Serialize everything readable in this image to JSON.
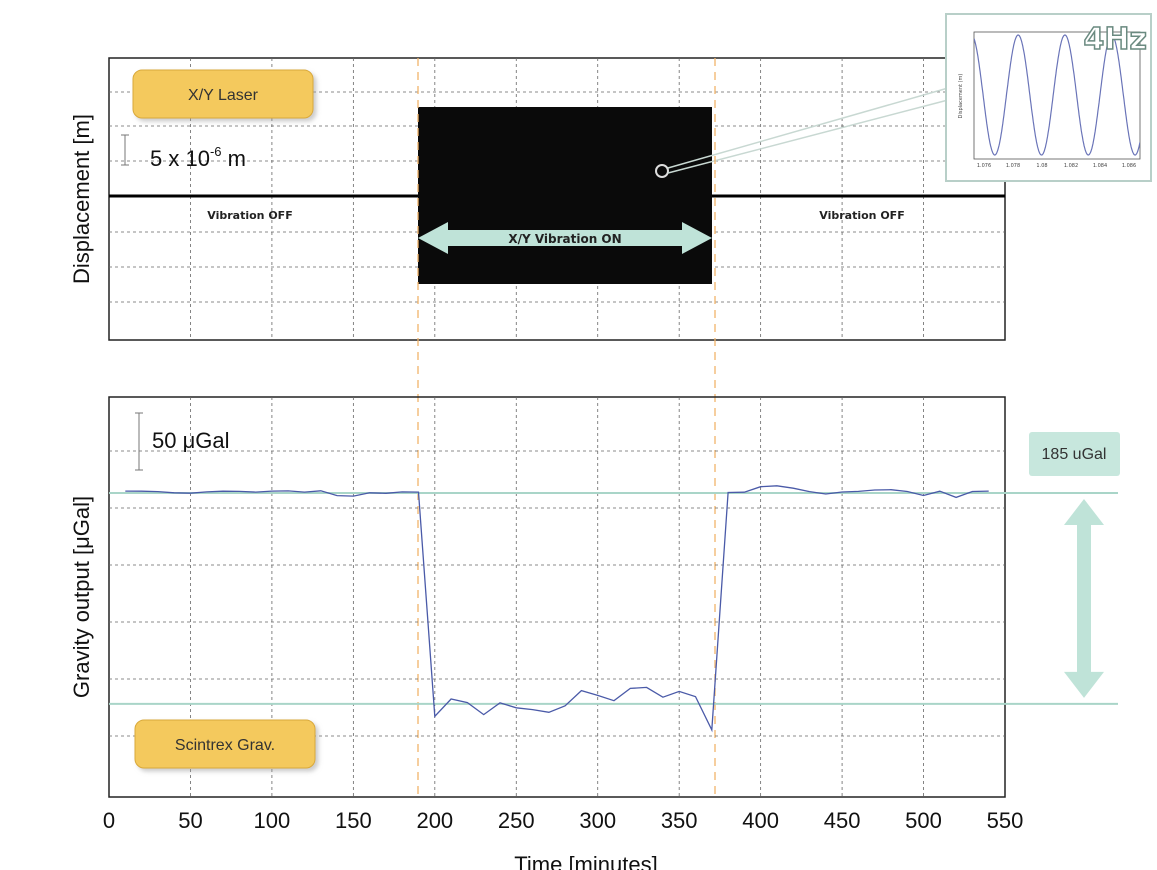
{
  "chart_data": [
    {
      "type": "line",
      "panel": "top",
      "ylabel": "Displacement [m]",
      "grid": true,
      "tag_label": "X/Y Laser",
      "scale_bar_text": "5 x 10",
      "scale_bar_exp": "-6",
      "scale_bar_unit": " m",
      "annotations": {
        "off_left": "Vibration OFF",
        "off_right": "Vibration OFF",
        "on": "X/Y  Vibration ON"
      },
      "vibration_on_range": [
        190,
        370
      ],
      "inset": {
        "label": "4Hz",
        "ylabel": "Displacement (m)",
        "tick_labels": [
          "1.076",
          "1.078",
          "1.08",
          "1.082",
          "1.084",
          "1.086"
        ]
      }
    },
    {
      "type": "line",
      "panel": "bottom",
      "ylabel": "Gravity output [μGal]",
      "xlabel": "Time [minutes]",
      "xlim": [
        0,
        550
      ],
      "x_ticks": [
        0,
        50,
        100,
        150,
        200,
        250,
        300,
        350,
        400,
        450,
        500,
        550
      ],
      "grid": true,
      "tag_label": "Scintrex Grav.",
      "scale_bar_text": "50 μGal",
      "difference_label": "185 uGal",
      "series": [
        {
          "x": [
            10,
            20,
            30,
            40,
            50,
            60,
            70,
            80,
            90,
            100,
            110,
            120,
            130,
            140,
            150,
            160,
            170,
            180,
            190,
            200,
            210,
            220,
            230,
            240,
            250,
            260,
            270,
            280,
            290,
            300,
            310,
            320,
            330,
            340,
            350,
            360,
            370,
            380,
            390,
            400,
            410,
            420,
            430,
            440,
            450,
            460,
            470,
            480,
            490,
            500,
            510,
            520,
            530,
            540
          ],
          "values": [
            1.7,
            1.6,
            1.2,
            0.2,
            -0.2,
            1.0,
            1.6,
            1.4,
            0.8,
            1.7,
            1.8,
            0.8,
            1.9,
            -2.3,
            -2.7,
            0.2,
            -0.3,
            1.0,
            0.8,
            -195.9,
            -180.7,
            -183.9,
            -194.4,
            -184.1,
            -188.4,
            -190.0,
            -192.4,
            -186.7,
            -173.3,
            -177.5,
            -182.2,
            -171.4,
            -170.5,
            -179.1,
            -174.0,
            -178.6,
            -207.8,
            0.4,
            0.7,
            5.5,
            6.3,
            4.2,
            1.2,
            -0.9,
            0.9,
            1.4,
            2.6,
            2.9,
            1.3,
            -2.2,
            1.6,
            -3.9,
            1.3,
            1.7
          ]
        }
      ],
      "reference_levels": [
        0,
        -185
      ]
    }
  ]
}
